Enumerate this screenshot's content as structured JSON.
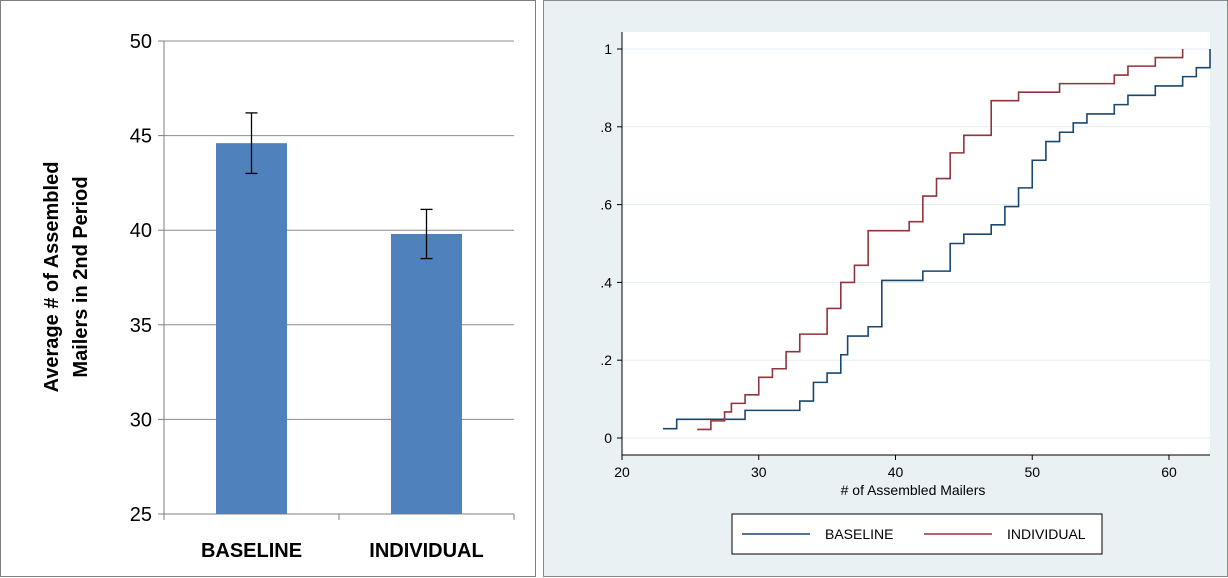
{
  "charts": [
    {
      "type": "bar",
      "title": "",
      "xlabel": "",
      "ylabel_line1": "Average # of Assembled",
      "ylabel_line2": "Mailers in 2nd Period",
      "ylim": [
        25,
        50
      ],
      "yticks": [
        "25",
        "30",
        "35",
        "40",
        "45",
        "50"
      ],
      "categories": [
        "BASELINE",
        "INDIVIDUAL"
      ],
      "values": [
        44.6,
        39.8
      ],
      "error_low": [
        43.0,
        38.5
      ],
      "error_high": [
        46.2,
        41.1
      ],
      "bar_color": "#4f81bd",
      "grid": true
    },
    {
      "type": "line",
      "title": "",
      "xlabel": "# of Assembled Mailers",
      "ylabel": "",
      "xlim": [
        20,
        63
      ],
      "ylim": [
        0,
        1
      ],
      "xticks": [
        "20",
        "30",
        "40",
        "50",
        "60"
      ],
      "yticks": [
        "0",
        ".2",
        ".4",
        ".6",
        ".8",
        "1"
      ],
      "step": true,
      "grid": true,
      "legend_position": "bottom",
      "series": [
        {
          "name": "BASELINE",
          "color": "#1a476f",
          "points": [
            [
              23,
              0.024
            ],
            [
              24,
              0.048
            ],
            [
              28,
              0.048
            ],
            [
              29,
              0.071
            ],
            [
              32,
              0.071
            ],
            [
              33,
              0.095
            ],
            [
              34,
              0.143
            ],
            [
              35,
              0.167
            ],
            [
              36,
              0.214
            ],
            [
              36.5,
              0.262
            ],
            [
              38,
              0.286
            ],
            [
              39,
              0.405
            ],
            [
              42,
              0.429
            ],
            [
              44,
              0.5
            ],
            [
              45,
              0.524
            ],
            [
              47,
              0.548
            ],
            [
              48,
              0.595
            ],
            [
              49,
              0.643
            ],
            [
              50,
              0.714
            ],
            [
              51,
              0.762
            ],
            [
              52,
              0.786
            ],
            [
              53,
              0.81
            ],
            [
              54,
              0.833
            ],
            [
              56,
              0.857
            ],
            [
              57,
              0.881
            ],
            [
              59,
              0.905
            ],
            [
              61,
              0.929
            ],
            [
              62,
              0.952
            ],
            [
              63,
              1.0
            ]
          ]
        },
        {
          "name": "INDIVIDUAL",
          "color": "#90353b",
          "points": [
            [
              25.5,
              0.022
            ],
            [
              26.5,
              0.044
            ],
            [
              27.5,
              0.067
            ],
            [
              28,
              0.089
            ],
            [
              29,
              0.111
            ],
            [
              30,
              0.156
            ],
            [
              31,
              0.178
            ],
            [
              32,
              0.222
            ],
            [
              33,
              0.267
            ],
            [
              35,
              0.333
            ],
            [
              36,
              0.4
            ],
            [
              37,
              0.444
            ],
            [
              38,
              0.533
            ],
            [
              41,
              0.556
            ],
            [
              42,
              0.622
            ],
            [
              43,
              0.667
            ],
            [
              44,
              0.733
            ],
            [
              45,
              0.778
            ],
            [
              47,
              0.867
            ],
            [
              49,
              0.889
            ],
            [
              52,
              0.911
            ],
            [
              56,
              0.933
            ],
            [
              57,
              0.956
            ],
            [
              59,
              0.978
            ],
            [
              61,
              1.0
            ]
          ]
        }
      ]
    }
  ]
}
